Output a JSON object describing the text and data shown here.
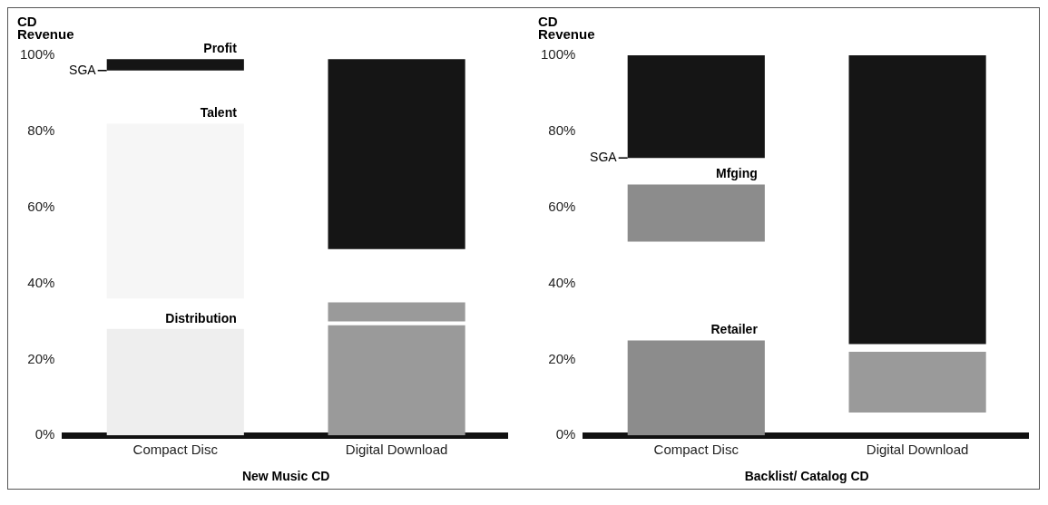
{
  "chart_data": [
    {
      "type": "bar",
      "xlabel": "New Music CD",
      "ylabel": "CD Revenue",
      "categories": [
        "Compact Disc",
        "Digital Download"
      ],
      "series": [
        {
          "name": "Distribution",
          "base": [
            0,
            null
          ],
          "values": [
            28,
            null
          ],
          "color": "#eeeeee"
        },
        {
          "name": "Talent",
          "base": [
            36,
            null
          ],
          "values": [
            46,
            null
          ],
          "color": "#f6f6f6"
        },
        {
          "name": "Profit",
          "base": [
            96,
            null
          ],
          "values": [
            3,
            null
          ],
          "color": "#151515"
        },
        {
          "base": [
            null,
            0
          ],
          "values": [
            null,
            29
          ],
          "color": "#9a9a9a"
        },
        {
          "base": [
            null,
            30
          ],
          "values": [
            null,
            5
          ],
          "color": "#9a9a9a"
        },
        {
          "base": [
            null,
            49
          ],
          "values": [
            null,
            50
          ],
          "color": "#151515"
        }
      ],
      "ylim": [
        0,
        100
      ],
      "yticks": [
        {
          "value": 0,
          "label": "0%"
        },
        {
          "value": 20,
          "label": "20%"
        },
        {
          "value": 40,
          "label": "40%"
        },
        {
          "value": 60,
          "label": "60%"
        },
        {
          "value": 80,
          "label": "80%"
        },
        {
          "value": 100,
          "label": "100%"
        }
      ],
      "ref_lines": [
        {
          "axis": "y",
          "value": 96,
          "label": "SGA"
        }
      ]
    },
    {
      "type": "bar",
      "xlabel": "Backlist/ Catalog CD",
      "ylabel": "CD Revenue",
      "categories": [
        "Compact Disc",
        "Digital Download"
      ],
      "series": [
        {
          "name": "Retailer",
          "base": [
            0,
            null
          ],
          "values": [
            25,
            null
          ],
          "color": "#8c8c8c"
        },
        {
          "name": "Mfging",
          "base": [
            51,
            null
          ],
          "values": [
            15,
            null
          ],
          "color": "#8c8c8c"
        },
        {
          "base": [
            73,
            null
          ],
          "values": [
            27,
            null
          ],
          "color": "#151515"
        },
        {
          "base": [
            null,
            6
          ],
          "values": [
            null,
            16
          ],
          "color": "#9a9a9a"
        },
        {
          "base": [
            null,
            24
          ],
          "values": [
            null,
            76
          ],
          "color": "#151515"
        }
      ],
      "ylim": [
        0,
        100
      ],
      "yticks": [
        {
          "value": 0,
          "label": "0%"
        },
        {
          "value": 20,
          "label": "20%"
        },
        {
          "value": 40,
          "label": "40%"
        },
        {
          "value": 60,
          "label": "60%"
        },
        {
          "value": 80,
          "label": "80%"
        },
        {
          "value": 100,
          "label": "100%"
        }
      ],
      "ref_lines": [
        {
          "axis": "y",
          "value": 73,
          "label": "SGA"
        }
      ]
    }
  ]
}
